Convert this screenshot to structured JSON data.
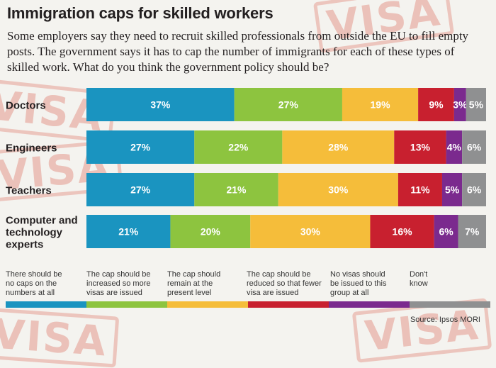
{
  "header": {
    "title": "Immigration caps for skilled workers",
    "question": "Some employers say they need to recruit skilled professionals from outside the EU to fill empty posts. The government says it has to cap the number of immigrants for each of these types of skilled work. What do you think the government policy should be?"
  },
  "stamps": [
    "VISA",
    "VISA",
    "VISA",
    "VISA",
    "VISA"
  ],
  "chart_data": {
    "type": "bar",
    "stacked": true,
    "orientation": "horizontal",
    "unit": "%",
    "categories": [
      "Doctors",
      "Engineers",
      "Teachers",
      "Computer and technology experts"
    ],
    "series": [
      {
        "name": "There should be no caps on the numbers at all",
        "color": "#1a94c0",
        "values": [
          37,
          27,
          27,
          21
        ]
      },
      {
        "name": "The cap should be increased so more visas are issued",
        "color": "#8dc43f",
        "values": [
          27,
          22,
          21,
          20
        ]
      },
      {
        "name": "The cap should remain at the present level",
        "color": "#f5bd3a",
        "values": [
          19,
          28,
          30,
          30
        ]
      },
      {
        "name": "The cap should be reduced so that fewer visa are issued",
        "color": "#c8202f",
        "values": [
          9,
          13,
          11,
          16
        ]
      },
      {
        "name": "No visas should be issued to this group at all",
        "color": "#7b2a8e",
        "values": [
          3,
          4,
          5,
          6
        ]
      },
      {
        "name": "Don't know",
        "color": "#8f9091",
        "values": [
          5,
          6,
          6,
          7
        ]
      }
    ],
    "labels": [
      [
        "37%",
        "27%",
        "19%",
        "9%",
        "3%",
        "5%"
      ],
      [
        "27%",
        "22%",
        "28%",
        "13%",
        "4%",
        "6%"
      ],
      [
        "27%",
        "21%",
        "30%",
        "11%",
        "5%",
        "6%"
      ],
      [
        "21%",
        "20%",
        "30%",
        "16%",
        "6%",
        "7%"
      ]
    ],
    "category_lines": [
      [
        "Doctors"
      ],
      [
        "Engineers"
      ],
      [
        "Teachers"
      ],
      [
        "Computer and",
        "technology",
        "experts"
      ]
    ],
    "legend_lines": [
      [
        "There should be",
        "no caps on the",
        "numbers at all"
      ],
      [
        "The cap should be",
        "increased so more",
        "visas are issued"
      ],
      [
        "The cap should",
        "remain  at the",
        "present level"
      ],
      [
        "The cap should be",
        "reduced so that fewer",
        "visa are issued"
      ],
      [
        "No visas should",
        "be issued to this",
        "group at all"
      ],
      [
        "Don't",
        "know"
      ]
    ]
  },
  "source": "Source: Ipsos MORI"
}
